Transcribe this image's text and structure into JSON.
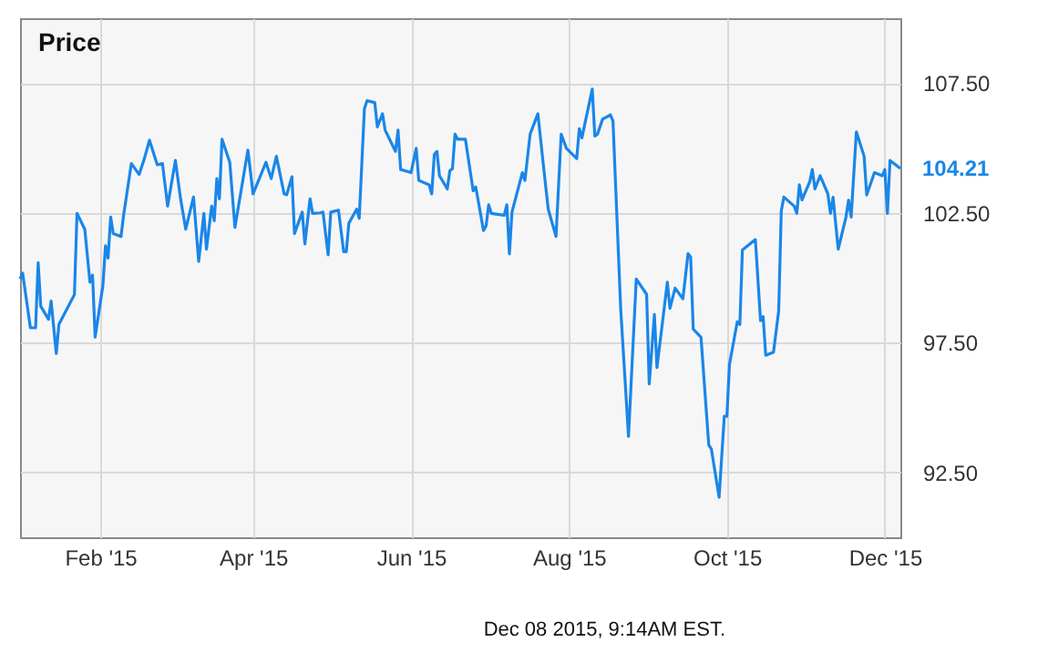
{
  "chart_data": {
    "type": "line",
    "title": "Price",
    "annotations": [
      {
        "text": "104.21",
        "x": "2015-12-07",
        "y": 104.21
      },
      "Dec 08 2015, 9:14AM EST."
    ],
    "xlim": [
      "2015-01-01",
      "2015-12-07"
    ],
    "xticks": [
      {
        "value": "2015-02-01",
        "label": "Feb '15"
      },
      {
        "value": "2015-04-01",
        "label": "Apr '15"
      },
      {
        "value": "2015-06-01",
        "label": "Jun '15"
      },
      {
        "value": "2015-08-01",
        "label": "Aug '15"
      },
      {
        "value": "2015-10-01",
        "label": "Oct '15"
      },
      {
        "value": "2015-12-01",
        "label": "Dec '15"
      }
    ],
    "ylim": [
      90,
      110
    ],
    "yticks": [
      {
        "value": 92.5,
        "label": "92.50"
      },
      {
        "value": 97.5,
        "label": "97.50"
      },
      {
        "value": 102.5,
        "label": "102.50"
      },
      {
        "value": 107.5,
        "label": "107.50"
      }
    ],
    "grid": true,
    "marker": "none",
    "line_style": "solid",
    "x": [
      "2015-01-01",
      "2015-01-02",
      "2015-01-05",
      "2015-01-07",
      "2015-01-08",
      "2015-01-09",
      "2015-01-12",
      "2015-01-13",
      "2015-01-15",
      "2015-01-16",
      "2015-01-22",
      "2015-01-23",
      "2015-01-26",
      "2015-01-28",
      "2015-01-29",
      "2015-01-30",
      "2015-02-02",
      "2015-02-03",
      "2015-02-04",
      "2015-02-05",
      "2015-02-06",
      "2015-02-09",
      "2015-02-10",
      "2015-02-13",
      "2015-02-16",
      "2015-02-18",
      "2015-02-20",
      "2015-02-23",
      "2015-02-25",
      "2015-02-27",
      "2015-03-02",
      "2015-03-04",
      "2015-03-06",
      "2015-03-09",
      "2015-03-11",
      "2015-03-13",
      "2015-03-14",
      "2015-03-16",
      "2015-03-17",
      "2015-03-18",
      "2015-03-19",
      "2015-03-20",
      "2015-03-23",
      "2015-03-25",
      "2015-03-30",
      "2015-04-01",
      "2015-04-06",
      "2015-04-08",
      "2015-04-10",
      "2015-04-13",
      "2015-04-14",
      "2015-04-16",
      "2015-04-17",
      "2015-04-20",
      "2015-04-21",
      "2015-04-23",
      "2015-04-24",
      "2015-04-27",
      "2015-04-28",
      "2015-04-30",
      "2015-05-01",
      "2015-05-04",
      "2015-05-06",
      "2015-05-07",
      "2015-05-08",
      "2015-05-11",
      "2015-05-12",
      "2015-05-14",
      "2015-05-15",
      "2015-05-18",
      "2015-05-19",
      "2015-05-21",
      "2015-05-22",
      "2015-05-26",
      "2015-05-27",
      "2015-05-28",
      "2015-06-01",
      "2015-06-03",
      "2015-06-04",
      "2015-06-08",
      "2015-06-09",
      "2015-06-10",
      "2015-06-11",
      "2015-06-12",
      "2015-06-15",
      "2015-06-16",
      "2015-06-17",
      "2015-06-18",
      "2015-06-19",
      "2015-06-22",
      "2015-06-25",
      "2015-06-26",
      "2015-06-29",
      "2015-06-30",
      "2015-07-01",
      "2015-07-02",
      "2015-07-07",
      "2015-07-08",
      "2015-07-09",
      "2015-07-10",
      "2015-07-14",
      "2015-07-15",
      "2015-07-17",
      "2015-07-20",
      "2015-07-22",
      "2015-07-24",
      "2015-07-27",
      "2015-07-29",
      "2015-07-31",
      "2015-08-04",
      "2015-08-05",
      "2015-08-06",
      "2015-08-10",
      "2015-08-11",
      "2015-08-12",
      "2015-08-14",
      "2015-08-17",
      "2015-08-18",
      "2015-08-21",
      "2015-08-24",
      "2015-08-27",
      "2015-08-31",
      "2015-09-01",
      "2015-09-03",
      "2015-09-04",
      "2015-09-08",
      "2015-09-09",
      "2015-09-11",
      "2015-09-14",
      "2015-09-16",
      "2015-09-17",
      "2015-09-18",
      "2015-09-21",
      "2015-09-24",
      "2015-09-25",
      "2015-09-28",
      "2015-09-30",
      "2015-10-01",
      "2015-10-02",
      "2015-10-05",
      "2015-10-06",
      "2015-10-07",
      "2015-10-12",
      "2015-10-14",
      "2015-10-15",
      "2015-10-16",
      "2015-10-19",
      "2015-10-21",
      "2015-10-22",
      "2015-10-23",
      "2015-10-27",
      "2015-10-28",
      "2015-10-29",
      "2015-10-30",
      "2015-11-02",
      "2015-11-03",
      "2015-11-04",
      "2015-11-06",
      "2015-11-09",
      "2015-11-10",
      "2015-11-11",
      "2015-11-13",
      "2015-11-16",
      "2015-11-17",
      "2015-11-18",
      "2015-11-20",
      "2015-11-23",
      "2015-11-24",
      "2015-11-27",
      "2015-11-30",
      "2015-12-01",
      "2015-12-02",
      "2015-12-03",
      "2015-12-07"
    ],
    "series": [
      {
        "color": "#1a86e8",
        "values": [
          99.95,
          100.18,
          98.07,
          98.07,
          100.58,
          98.9,
          98.4,
          99.1,
          97.08,
          98.2,
          99.35,
          102.48,
          101.87,
          99.83,
          100.1,
          97.71,
          99.7,
          101.23,
          100.76,
          102.34,
          101.7,
          101.59,
          102.41,
          104.4,
          103.98,
          104.59,
          105.3,
          104.35,
          104.4,
          102.76,
          104.52,
          103.04,
          101.87,
          103.11,
          100.63,
          102.48,
          101.1,
          102.76,
          102.2,
          103.82,
          103.04,
          105.34,
          104.45,
          101.94,
          104.92,
          103.23,
          104.45,
          103.82,
          104.68,
          103.23,
          103.2,
          103.89,
          101.7,
          102.53,
          101.3,
          103.04,
          102.48,
          102.5,
          102.53,
          100.88,
          102.53,
          102.6,
          101.0,
          101.0,
          102.1,
          102.64,
          102.29,
          106.51,
          106.82,
          106.75,
          105.81,
          106.32,
          105.69,
          104.87,
          105.69,
          104.17,
          104.05,
          104.99,
          103.75,
          103.58,
          103.23,
          104.75,
          104.87,
          103.93,
          103.42,
          104.12,
          104.2,
          105.53,
          105.34,
          105.34,
          103.35,
          103.5,
          101.82,
          102.0,
          102.81,
          102.48,
          102.41,
          102.81,
          100.92,
          102.53,
          104.05,
          103.75,
          105.53,
          106.32,
          104.45,
          102.64,
          101.59,
          105.53,
          104.99,
          104.59,
          105.74,
          105.39,
          107.27,
          105.46,
          105.53,
          106.11,
          106.28,
          106.04,
          98.77,
          93.89,
          99.95,
          99.36,
          95.91,
          98.58,
          96.54,
          99.83,
          98.82,
          99.6,
          99.19,
          100.93,
          100.8,
          98.02,
          97.71,
          93.56,
          93.4,
          91.54,
          94.66,
          94.66,
          96.66,
          98.3,
          98.2,
          101.07,
          101.47,
          98.35,
          98.5,
          97.01,
          97.13,
          98.72,
          102.57,
          103.11,
          102.76,
          102.48,
          103.58,
          103.0,
          103.7,
          104.17,
          103.42,
          103.93,
          103.23,
          102.48,
          103.1,
          101.1,
          102.34,
          102.99,
          102.34,
          105.62,
          104.68,
          103.19,
          104.05,
          103.93,
          104.17,
          102.48,
          104.52,
          104.21
        ]
      }
    ]
  }
}
